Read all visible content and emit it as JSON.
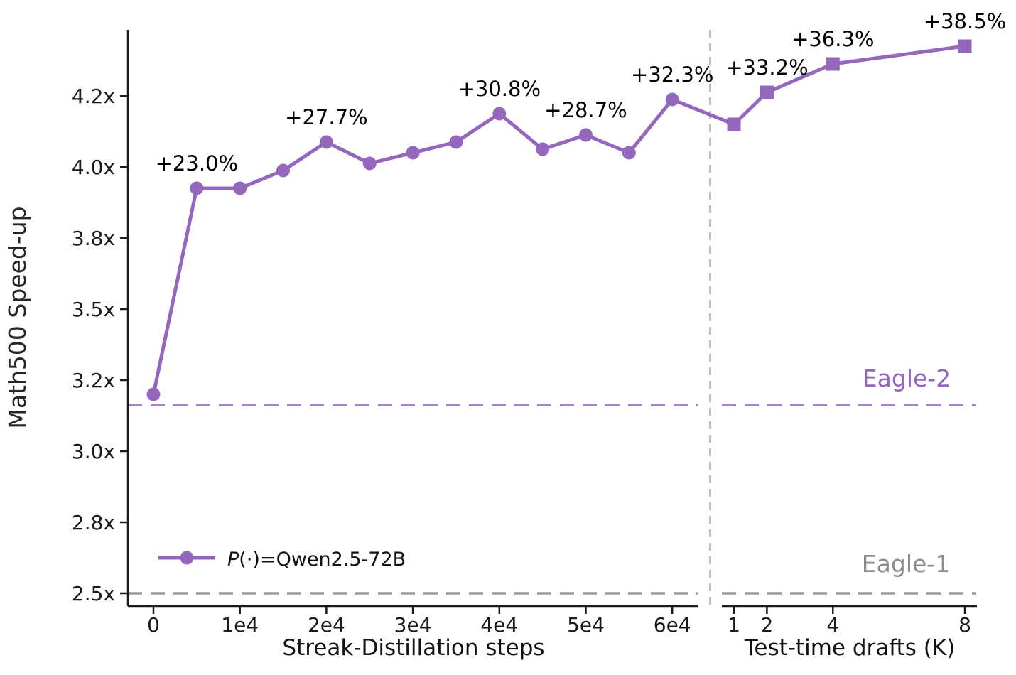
{
  "chart_data": {
    "type": "line",
    "title": "",
    "ylabel": "Math500 Speed-up",
    "y_ticks": [
      {
        "label": "2.5x",
        "value": 2.5
      },
      {
        "label": "2.8x",
        "value": 2.8
      },
      {
        "label": "3.0x",
        "value": 3.0
      },
      {
        "label": "3.2x",
        "value": 3.2
      },
      {
        "label": "3.5x",
        "value": 3.5
      },
      {
        "label": "3.8x",
        "value": 3.8
      },
      {
        "label": "4.0x",
        "value": 4.0
      },
      {
        "label": "4.2x",
        "value": 4.2
      }
    ],
    "panels": [
      {
        "xlabel": "Streak-Distillation steps",
        "x_ticks": [
          {
            "label": "0",
            "value": 0
          },
          {
            "label": "1e4",
            "value": 10000
          },
          {
            "label": "2e4",
            "value": 20000
          },
          {
            "label": "3e4",
            "value": 30000
          },
          {
            "label": "4e4",
            "value": 40000
          },
          {
            "label": "5e4",
            "value": 50000
          },
          {
            "label": "6e4",
            "value": 60000
          }
        ],
        "marker": "circle",
        "points": [
          {
            "x": 0,
            "y": 3.16
          },
          {
            "x": 5000,
            "y": 3.94,
            "annotation": "+23.0%"
          },
          {
            "x": 10000,
            "y": 3.94
          },
          {
            "x": 15000,
            "y": 3.99
          },
          {
            "x": 20000,
            "y": 4.07,
            "annotation": "+27.7%"
          },
          {
            "x": 25000,
            "y": 4.01
          },
          {
            "x": 30000,
            "y": 4.04
          },
          {
            "x": 35000,
            "y": 4.07
          },
          {
            "x": 40000,
            "y": 4.15,
            "annotation": "+30.8%"
          },
          {
            "x": 45000,
            "y": 4.05
          },
          {
            "x": 50000,
            "y": 4.09,
            "annotation": "+28.7%"
          },
          {
            "x": 55000,
            "y": 4.04
          },
          {
            "x": 60000,
            "y": 4.19,
            "annotation": "+32.3%"
          }
        ]
      },
      {
        "xlabel": "Test-time drafts (K)",
        "x_ticks": [
          {
            "label": "1",
            "value": 1
          },
          {
            "label": "2",
            "value": 2
          },
          {
            "label": "4",
            "value": 4
          },
          {
            "label": "8",
            "value": 8
          }
        ],
        "marker": "square",
        "points": [
          {
            "x": 1,
            "y": 4.12
          },
          {
            "x": 2,
            "y": 4.21,
            "annotation": "+33.2%"
          },
          {
            "x": 4,
            "y": 4.29,
            "annotation": "+36.3%"
          },
          {
            "x": 8,
            "y": 4.34,
            "annotation": "+38.5%"
          }
        ]
      }
    ],
    "baselines": [
      {
        "label": "Eagle-2",
        "value": 3.13,
        "line_color": "#a583c9",
        "label_color": "#9467bd"
      },
      {
        "label": "Eagle-1",
        "value": 2.5,
        "line_color": "#999999",
        "label_color": "#8c8c8c"
      }
    ],
    "legend": {
      "label_italic": "P",
      "label_rest": "(·)=Qwen2.5-72B"
    },
    "series_color": "#9467bd",
    "axis_color": "#1a1a1a",
    "divider_color": "#a8a8a8"
  }
}
